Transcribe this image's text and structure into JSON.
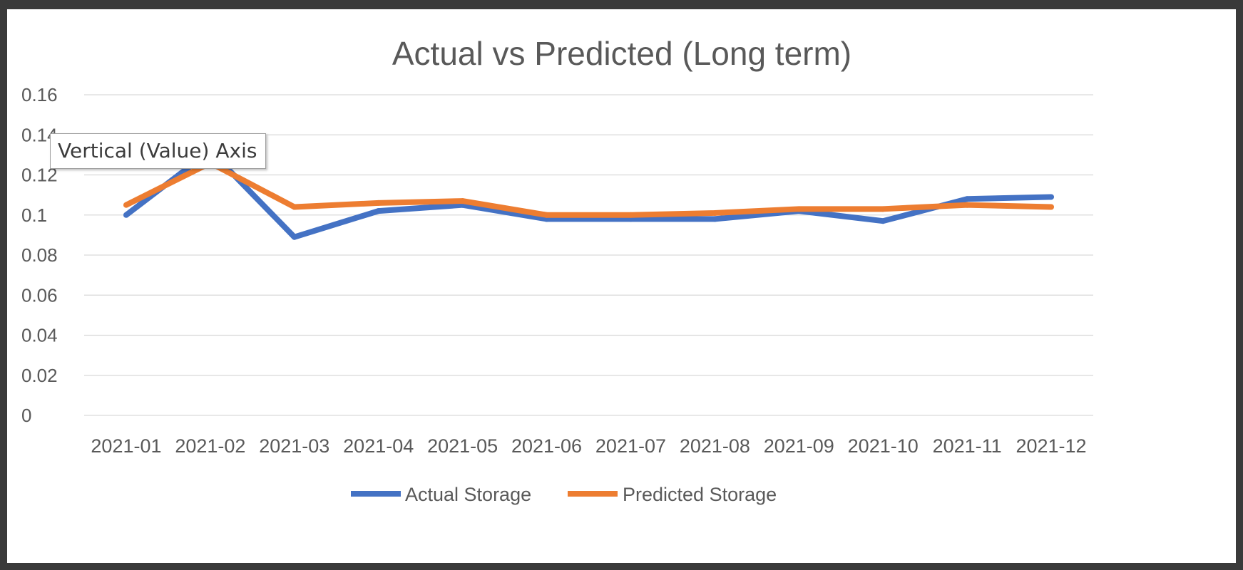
{
  "tooltip": {
    "text": "Vertical (Value) Axis"
  },
  "chart_data": {
    "type": "line",
    "title": "Actual vs Predicted (Long term)",
    "xlabel": "",
    "ylabel": "",
    "categories": [
      "2021-01",
      "2021-02",
      "2021-03",
      "2021-04",
      "2021-05",
      "2021-06",
      "2021-07",
      "2021-08",
      "2021-09",
      "2021-10",
      "2021-11",
      "2021-12"
    ],
    "ylim": [
      0,
      0.16
    ],
    "yticks": [
      "0",
      "0.02",
      "0.04",
      "0.06",
      "0.08",
      "0.1",
      "0.12",
      "0.14",
      "0.16"
    ],
    "grid": true,
    "legend_position": "bottom",
    "series": [
      {
        "name": "Actual Storage",
        "color": "#4472c4",
        "values": [
          0.1,
          0.132,
          0.089,
          0.102,
          0.105,
          0.098,
          0.098,
          0.098,
          0.102,
          0.097,
          0.108,
          0.109
        ]
      },
      {
        "name": "Predicted Storage",
        "color": "#ed7d31",
        "values": [
          0.105,
          0.126,
          0.104,
          0.106,
          0.107,
          0.1,
          0.1,
          0.101,
          0.103,
          0.103,
          0.105,
          0.104
        ]
      }
    ]
  }
}
